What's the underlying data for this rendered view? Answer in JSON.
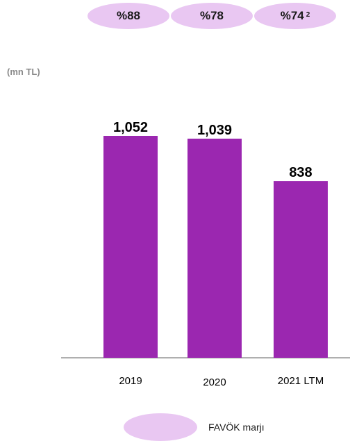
{
  "chart_data": {
    "type": "bar",
    "unit_label": "(mn TL)",
    "categories": [
      "2019",
      "2020",
      "2021 LTM"
    ],
    "series": [
      {
        "values": [
          1052,
          1039,
          838
        ],
        "value_labels": [
          "1,052",
          "1,039",
          "838"
        ],
        "color": "#9b27b0"
      }
    ],
    "ebitda_margins": {
      "labels": [
        "%88",
        "%78",
        "%74"
      ],
      "values_percent": [
        88,
        78,
        74
      ],
      "footnote_marks": [
        "",
        "",
        "2"
      ],
      "color": "#e9c7f2"
    },
    "legend": [
      {
        "label": "FAVÖK marjı",
        "color": "#e9c7f2"
      }
    ],
    "ylim": [
      0,
      1052
    ],
    "grid": false
  }
}
